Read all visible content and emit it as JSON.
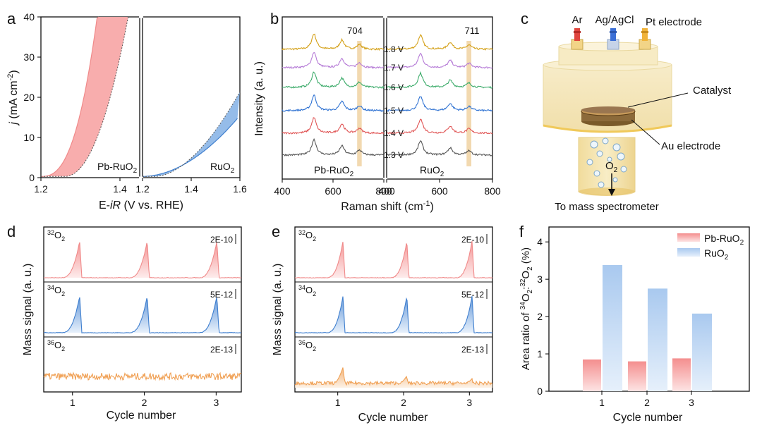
{
  "panels": {
    "a": "a",
    "b": "b",
    "c": "c",
    "d": "d",
    "e": "e",
    "f": "f"
  },
  "colors": {
    "pb": "#f08a8a",
    "pbFill": "#f8a9a9",
    "ru": "#3f7fcf",
    "ruFill": "#8fb8e8",
    "orange": "#f0a054",
    "band": "#efcf9c",
    "raman": [
      "#d4a017",
      "#b57ad6",
      "#3cab6a",
      "#2f72d2",
      "#e05555",
      "#555555"
    ]
  },
  "chart_data": [
    {
      "id": "a",
      "type": "area",
      "title": "",
      "xlabel_parts": [
        "E-",
        "iR",
        " (V vs. RHE)"
      ],
      "ylabel_parts": [
        "j",
        " (mA cm",
        "-2",
        ")"
      ],
      "ylim": [
        0,
        40
      ],
      "yticks": [
        "0",
        "10",
        "20",
        "30",
        "40"
      ],
      "left_xlim": [
        1.2,
        1.45
      ],
      "right_xlim": [
        1.2,
        1.6
      ],
      "left_xticks": [
        "1.2",
        "1.4"
      ],
      "right_xticks": [
        "1.2",
        "1.4",
        "1.6"
      ],
      "series": [
        {
          "name": "Pb-RuO2",
          "label_main": "Pb-RuO",
          "label_sub": "2",
          "upper": {
            "onset": 1.2,
            "k": 7.0,
            "p": 2.6,
            "xmax": 1.43
          },
          "lower": {
            "onset": 1.26,
            "k": 6.2,
            "p": 2.1,
            "xmax": 1.45
          }
        },
        {
          "name": "RuO2",
          "label_main": "RuO",
          "label_sub": "2",
          "upper": {
            "onset": 1.2,
            "k": 1.5,
            "p": 1.9,
            "xmax": 1.59
          },
          "lower": {
            "onset": 1.25,
            "k": 2.0,
            "p": 1.8,
            "xmax": 1.6
          }
        }
      ]
    },
    {
      "id": "b",
      "type": "line",
      "xlabel_parts": [
        "Raman shift (cm",
        "-1",
        ")"
      ],
      "ylabel": "Intensity (a. u.)",
      "left_xlim": [
        400,
        800
      ],
      "right_xlim": [
        400,
        800
      ],
      "left_xticks": [
        "400",
        "600",
        "800"
      ],
      "right_xticks": [
        "400",
        "600",
        "800"
      ],
      "potentials": [
        "1.8 V",
        "1.7 V",
        "1.6 V",
        "1.5 V",
        "1.4 V",
        "1.3 V"
      ],
      "band_labels": [
        "704",
        "711"
      ],
      "band_centers": [
        704,
        711
      ],
      "sample_main": [
        "Pb-RuO",
        "RuO"
      ],
      "sample_sub": [
        "2",
        "2"
      ],
      "peaks_left": [
        {
          "x": 525,
          "h": 22
        },
        {
          "x": 635,
          "h": 13
        },
        {
          "x": 704,
          "h": 7
        }
      ],
      "peaks_right": [
        {
          "x": 528,
          "h": 20
        },
        {
          "x": 640,
          "h": 10
        },
        {
          "x": 711,
          "h": 6
        }
      ]
    },
    {
      "id": "d",
      "type": "line",
      "xlabel": "Cycle number",
      "ylabel": "Mass signal (a. u.)",
      "xticks": [
        "1",
        "2",
        "3"
      ],
      "xlim": [
        0.6,
        3.35
      ],
      "peak_positions": [
        1.1,
        2.04,
        3.01
      ],
      "rows": [
        {
          "label_main": "O",
          "label_sup": "32",
          "label_sub": "2",
          "scale": "2E-10",
          "kind": "peaks",
          "color": "pb"
        },
        {
          "label_main": "O",
          "label_sup": "34",
          "label_sub": "2",
          "scale": "5E-12",
          "kind": "peaks",
          "color": "ru"
        },
        {
          "label_main": "O",
          "label_sup": "36",
          "label_sub": "2",
          "scale": "2E-13",
          "kind": "noise",
          "color": "orange"
        }
      ]
    },
    {
      "id": "e",
      "type": "line",
      "xlabel": "Cycle number",
      "ylabel": "Mass signal (a. u.)",
      "xticks": [
        "1",
        "2",
        "3"
      ],
      "xlim": [
        0.35,
        3.35
      ],
      "peak_positions": [
        1.08,
        2.05,
        3.04
      ],
      "rows": [
        {
          "label_main": "O",
          "label_sup": "32",
          "label_sub": "2",
          "scale": "2E-10",
          "kind": "peaks",
          "color": "pb"
        },
        {
          "label_main": "O",
          "label_sup": "34",
          "label_sub": "2",
          "scale": "5E-12",
          "kind": "peaks",
          "color": "ru"
        },
        {
          "label_main": "O",
          "label_sup": "36",
          "label_sub": "2",
          "scale": "2E-13",
          "kind": "smallpeaks",
          "color": "orange"
        }
      ]
    },
    {
      "id": "f",
      "type": "bar",
      "xlabel": "Cycle number",
      "ylabel_parts": [
        "Area ratio of ",
        "34",
        "O",
        "2",
        ":",
        "32",
        "O",
        "2",
        " (%)"
      ],
      "categories": [
        "1",
        "2",
        "3"
      ],
      "ylim": [
        0,
        4.4
      ],
      "yticks": [
        "0",
        "1",
        "2",
        "3",
        "4"
      ],
      "series": [
        {
          "name": "Pb-RuO2",
          "legend_main": "Pb-RuO",
          "legend_sub": "2",
          "values": [
            0.85,
            0.8,
            0.88
          ]
        },
        {
          "name": "RuO2",
          "legend_main": "RuO",
          "legend_sub": "2",
          "values": [
            3.38,
            2.75,
            2.08
          ]
        }
      ]
    }
  ],
  "schematic": {
    "gas_labels": [
      "Ar",
      "Ag/AgCl",
      "Pt electrode"
    ],
    "catalyst": "Catalyst",
    "au_electrode": "Au electrode",
    "o2_main": "O",
    "o2_sub": "2",
    "outlet": "To mass spectrometer"
  }
}
